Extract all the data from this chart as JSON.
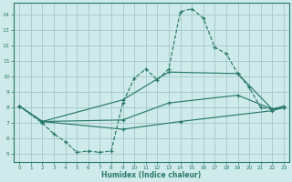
{
  "bg_color": "#ceeaea",
  "grid_color": "#aacccc",
  "line_color": "#2a7a6a",
  "xlabel": "Humidex (Indice chaleur)",
  "xlim": [
    -0.5,
    23.5
  ],
  "ylim": [
    4.5,
    14.8
  ],
  "yticks": [
    5,
    6,
    7,
    8,
    9,
    10,
    11,
    12,
    13,
    14
  ],
  "xticks": [
    0,
    1,
    2,
    3,
    4,
    5,
    6,
    7,
    8,
    9,
    10,
    11,
    12,
    13,
    14,
    15,
    16,
    17,
    18,
    19,
    20,
    21,
    22,
    23
  ],
  "curve1_x": [
    0,
    2,
    3,
    4,
    5,
    6,
    7,
    8,
    9,
    10,
    11,
    12,
    13,
    14,
    15,
    16,
    17,
    18,
    19,
    20,
    21,
    22,
    23
  ],
  "curve1_y": [
    8.1,
    7.0,
    6.3,
    5.8,
    5.1,
    5.2,
    5.1,
    5.2,
    8.3,
    9.9,
    10.5,
    9.8,
    10.5,
    14.2,
    14.4,
    13.8,
    11.9,
    11.5,
    10.2,
    9.3,
    8.0,
    7.9,
    8.0
  ],
  "curve2_x": [
    0,
    2,
    9,
    13,
    19,
    22,
    23
  ],
  "curve2_y": [
    8.1,
    7.1,
    8.5,
    10.3,
    10.2,
    7.9,
    8.0
  ],
  "curve3_x": [
    0,
    2,
    9,
    13,
    19,
    22,
    23
  ],
  "curve3_y": [
    8.1,
    7.1,
    7.2,
    8.3,
    8.8,
    7.9,
    8.1
  ],
  "curve4_x": [
    0,
    2,
    9,
    14,
    22,
    23
  ],
  "curve4_y": [
    8.1,
    7.1,
    6.6,
    7.1,
    7.8,
    8.0
  ]
}
